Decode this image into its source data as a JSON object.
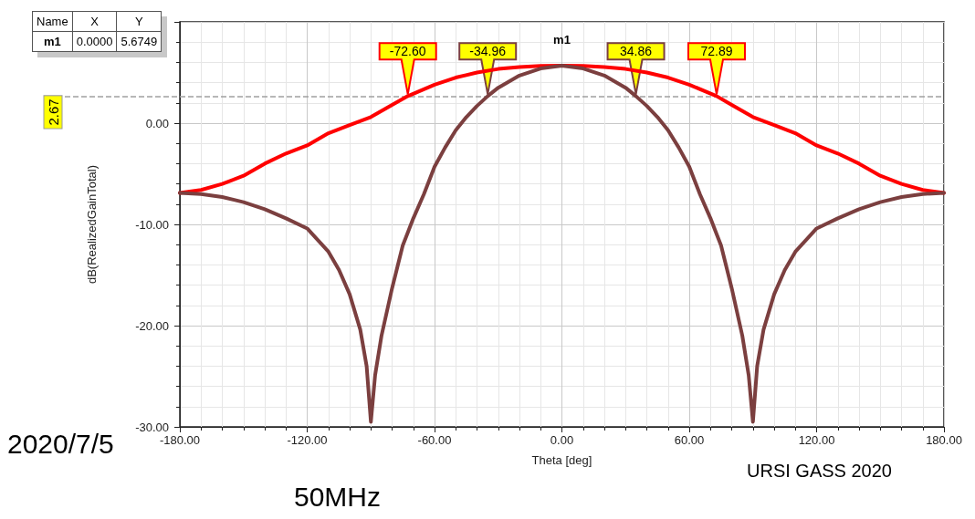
{
  "chart_data": {
    "type": "line",
    "xlabel": "Theta [deg]",
    "ylabel": "dB(RealizedGainTotal)",
    "xlim": [
      -180,
      180
    ],
    "xticks": [
      {
        "value": -180,
        "label": "-180.00"
      },
      {
        "value": -120,
        "label": "-120.00"
      },
      {
        "value": -60,
        "label": "-60.00"
      },
      {
        "value": 0,
        "label": "0.00"
      },
      {
        "value": 60,
        "label": "60.00"
      },
      {
        "value": 120,
        "label": "120.00"
      },
      {
        "value": 180,
        "label": "180.00"
      }
    ],
    "ylim": [
      -30,
      10
    ],
    "yticks": [
      {
        "value": -30,
        "label": "-30.00"
      },
      {
        "value": -20,
        "label": "-20.00"
      },
      {
        "value": -10,
        "label": "-10.00"
      },
      {
        "value": 0,
        "label": "0.00"
      }
    ],
    "grid": true,
    "marker": "none",
    "line_style": "solid",
    "series": [
      {
        "color": "#ff0000",
        "x": [
          -180,
          -170,
          -160,
          -150,
          -140,
          -130,
          -120,
          -110,
          -100,
          -90,
          -80,
          -72.6,
          -60,
          -50,
          -40,
          -30,
          -20,
          -10,
          0,
          10,
          20,
          30,
          40,
          50,
          60,
          72.89,
          80,
          90,
          100,
          110,
          120,
          130,
          140,
          150,
          160,
          170,
          180
        ],
        "values": [
          -6.9,
          -6.6,
          -6.0,
          -5.2,
          -4.0,
          -3.0,
          -2.2,
          -1.0,
          -0.2,
          0.6,
          1.8,
          2.67,
          3.8,
          4.5,
          5.0,
          5.35,
          5.55,
          5.65,
          5.67,
          5.65,
          5.55,
          5.35,
          5.0,
          4.5,
          3.8,
          2.67,
          1.8,
          0.6,
          -0.2,
          -1.0,
          -2.2,
          -3.0,
          -4.0,
          -5.2,
          -6.0,
          -6.6,
          -6.9
        ]
      },
      {
        "color": "#7b3f3f",
        "x": [
          -180,
          -170,
          -160,
          -150,
          -140,
          -130,
          -120,
          -110,
          -105,
          -100,
          -95,
          -92,
          -90,
          -88,
          -85,
          -80,
          -75,
          -70,
          -65,
          -60,
          -55,
          -50,
          -45,
          -40,
          -34.96,
          -30,
          -20,
          -10,
          0,
          10,
          20,
          30,
          34.86,
          40,
          45,
          50,
          55,
          60,
          65,
          70,
          75,
          80,
          85,
          88,
          90,
          92,
          95,
          100,
          105,
          110,
          120,
          130,
          140,
          150,
          160,
          170,
          180
        ],
        "values": [
          -6.9,
          -7.0,
          -7.3,
          -7.8,
          -8.5,
          -9.4,
          -10.4,
          -12.7,
          -14.5,
          -16.9,
          -20.4,
          -24,
          -29.5,
          -24.9,
          -21,
          -16.3,
          -12.1,
          -9.4,
          -7.0,
          -4.3,
          -2.4,
          -0.7,
          0.6,
          1.7,
          2.67,
          3.5,
          4.7,
          5.4,
          5.6749,
          5.4,
          4.7,
          3.5,
          2.67,
          1.7,
          0.6,
          -0.7,
          -2.4,
          -4.3,
          -7.0,
          -9.4,
          -12.1,
          -16.3,
          -21,
          -24.9,
          -29.5,
          -24,
          -20.4,
          -16.9,
          -14.5,
          -12.7,
          -10.4,
          -9.4,
          -8.5,
          -7.8,
          -7.3,
          -7.0,
          -6.9
        ]
      }
    ],
    "ref_lines": [
      {
        "axis": "y",
        "value": 2.67,
        "label": "2.67",
        "color": "#a0a0a0",
        "line_style": "dashed"
      }
    ],
    "annotations": [
      "Name",
      "X",
      "Y",
      "m1",
      "0.0000",
      "5.6749",
      "2020/7/5",
      "URSI GASS 2020",
      "50MHz",
      {
        "text": "m1",
        "x": 0,
        "y": 5.6749
      },
      {
        "text": "-72.60",
        "x": -72.6,
        "y": 2.67
      },
      {
        "text": "-34.96",
        "x": -34.96,
        "y": 2.67
      },
      {
        "text": "34.86",
        "x": 34.86,
        "y": 2.67
      },
      {
        "text": "72.89",
        "x": 72.89,
        "y": 2.67
      }
    ]
  }
}
